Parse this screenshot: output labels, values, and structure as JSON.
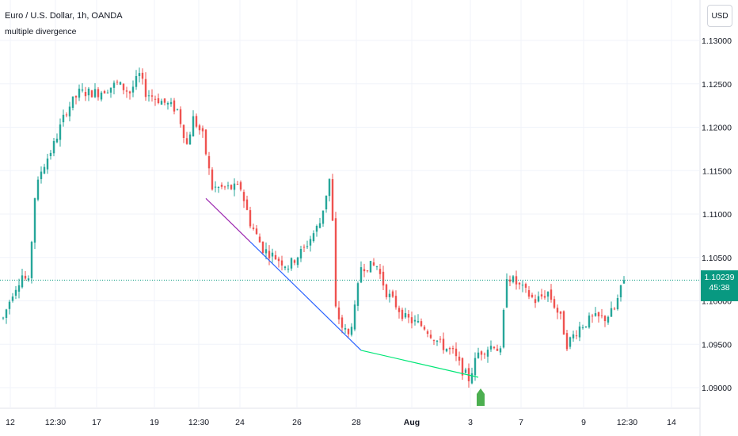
{
  "header": {
    "symbol_title": "Euro / U.S. Dollar, 1h, OANDA",
    "indicator_name": "multiple divergence"
  },
  "toolbar": {
    "currency_label": "USD"
  },
  "last_price": {
    "value": "1.10239",
    "countdown": "45:38"
  },
  "colors": {
    "up": "#26a69a",
    "down": "#ef5350",
    "bearish_line": "#9c27b0",
    "divergence_line": "#2962ff",
    "bullish_line": "#00e676",
    "signal_arrow": "#4caf50",
    "price_line": "#089981"
  },
  "chart_data": {
    "type": "candlestick",
    "title": "Euro / U.S. Dollar, 1h, OANDA",
    "indicator": "multiple divergence",
    "y_axis": {
      "ticks": [
        "1.09000",
        "1.09500",
        "1.10000",
        "1.10500",
        "1.11000",
        "1.11500",
        "1.12000",
        "1.12500",
        "1.13000"
      ],
      "ylim": [
        1.0875,
        1.1325
      ]
    },
    "x_axis": {
      "ticks": [
        "12",
        "12:30",
        "17",
        "19",
        "12:30",
        "24",
        "26",
        "28",
        "Aug",
        "3",
        "7",
        "9",
        "12:30",
        "14"
      ]
    },
    "grid": true,
    "last_price": 1.10239,
    "price_path": [
      [
        0,
        1.098
      ],
      [
        3,
        1.101
      ],
      [
        6,
        1.103
      ],
      [
        8,
        1.102
      ],
      [
        10,
        1.112
      ],
      [
        12,
        1.115
      ],
      [
        16,
        1.118
      ],
      [
        20,
        1.122
      ],
      [
        24,
        1.124
      ],
      [
        30,
        1.124
      ],
      [
        36,
        1.125
      ],
      [
        40,
        1.124
      ],
      [
        43,
        1.126
      ],
      [
        45,
        1.124
      ],
      [
        50,
        1.123
      ],
      [
        55,
        1.122
      ],
      [
        58,
        1.118
      ],
      [
        60,
        1.121
      ],
      [
        63,
        1.119
      ],
      [
        66,
        1.113
      ],
      [
        70,
        1.113
      ],
      [
        75,
        1.113
      ],
      [
        78,
        1.109
      ],
      [
        82,
        1.106
      ],
      [
        86,
        1.105
      ],
      [
        90,
        1.104
      ],
      [
        95,
        1.106
      ],
      [
        100,
        1.109
      ],
      [
        103,
        1.114
      ],
      [
        104,
        1.109
      ],
      [
        105,
        1.099
      ],
      [
        107,
        1.097
      ],
      [
        109,
        1.096
      ],
      [
        111,
        1.099
      ],
      [
        113,
        1.104
      ],
      [
        118,
        1.104
      ],
      [
        121,
        1.101
      ],
      [
        127,
        1.098
      ],
      [
        133,
        1.097
      ],
      [
        138,
        1.095
      ],
      [
        142,
        1.094
      ],
      [
        145,
        1.092
      ],
      [
        147,
        1.091
      ],
      [
        150,
        1.094
      ],
      [
        155,
        1.095
      ],
      [
        157,
        1.094
      ],
      [
        159,
        1.103
      ],
      [
        162,
        1.102
      ],
      [
        168,
        1.1
      ],
      [
        172,
        1.101
      ],
      [
        176,
        1.098
      ],
      [
        178,
        1.095
      ],
      [
        182,
        1.097
      ],
      [
        186,
        1.098
      ],
      [
        190,
        1.098
      ],
      [
        193,
        1.099
      ],
      [
        196,
        1.1024
      ]
    ],
    "divergence_lines": [
      {
        "kind": "bearish",
        "from": [
          64,
          1.1118
        ],
        "to": [
          78,
          1.1068
        ]
      },
      {
        "kind": "divergence",
        "from": [
          78,
          1.1068
        ],
        "to": [
          113,
          1.0943
        ]
      },
      {
        "kind": "bullish",
        "from": [
          113,
          1.0943
        ],
        "to": [
          150,
          1.0912
        ]
      }
    ],
    "signals": [
      {
        "type": "buy",
        "x": 152
      }
    ]
  }
}
